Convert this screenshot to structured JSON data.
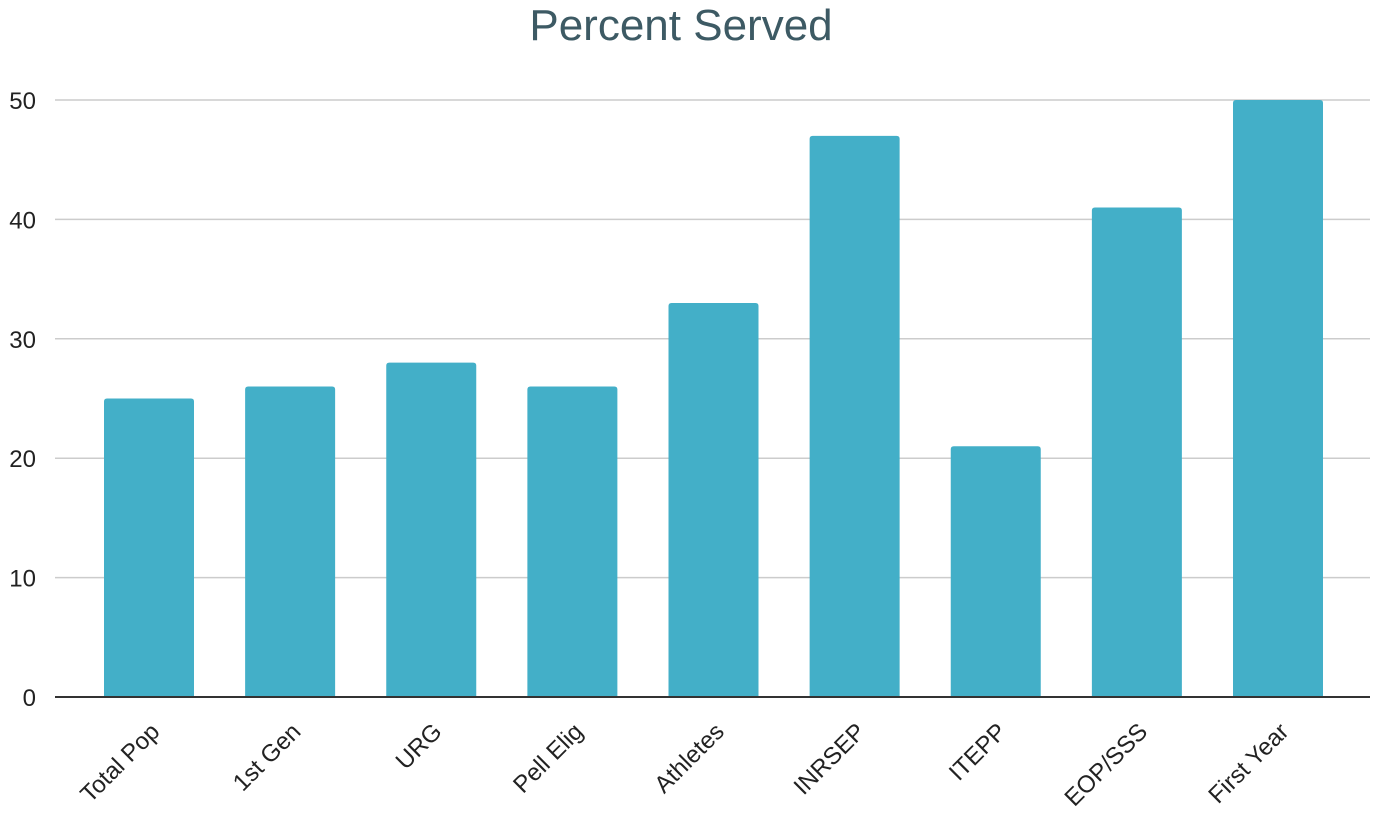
{
  "chart_data": {
    "type": "bar",
    "title": "Percent Served",
    "xlabel": "",
    "ylabel": "",
    "categories": [
      "Total Pop",
      "1st Gen",
      "URG",
      "Pell Elig",
      "Athletes",
      "INRSEP",
      "ITEPP",
      "EOP/SSS",
      "First Year"
    ],
    "values": [
      25,
      26,
      28,
      26,
      33,
      47,
      21,
      41,
      50
    ],
    "ylim": [
      0,
      50
    ],
    "yticks": [
      0,
      10,
      20,
      30,
      40,
      50
    ],
    "grid": true,
    "legend": "none",
    "bar_color": "#43afc8",
    "title_color": "#3d5a64"
  }
}
